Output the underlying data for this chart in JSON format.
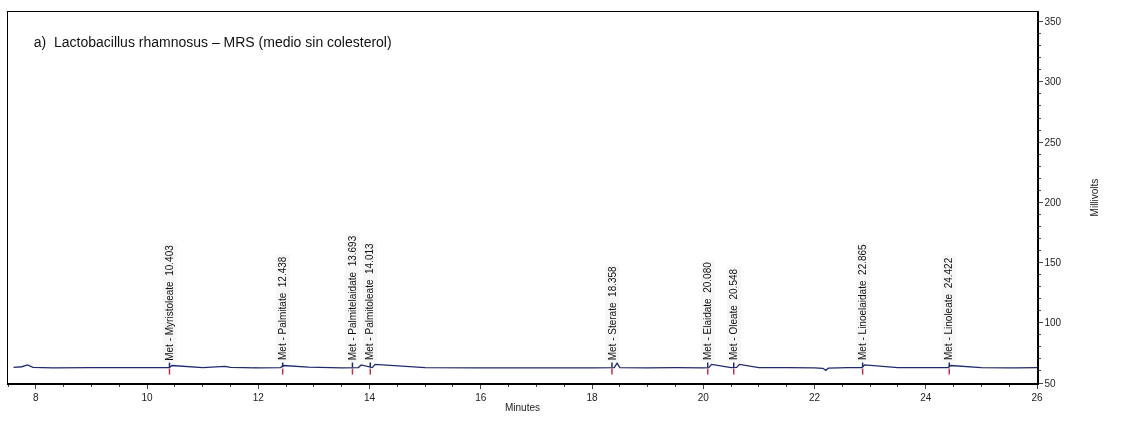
{
  "chart_data": {
    "type": "line",
    "title": "a)  Lactobacillus rhamnosus – MRS (medio sin colesterol)",
    "xlabel": "Minutes",
    "ylabel": "Millivolts",
    "x": [
      7.6,
      7.75,
      7.85,
      7.95,
      8.3,
      9,
      10,
      10.4,
      10.45,
      11,
      11.4,
      11.5,
      12,
      12.4,
      12.45,
      12.9,
      13.5,
      13.8,
      13.85,
      14.05,
      14.1,
      15,
      16,
      17,
      18,
      18.4,
      18.45,
      18.5,
      19,
      19.5,
      20,
      20.1,
      20.15,
      20.5,
      20.6,
      20.65,
      21,
      21.5,
      22,
      22.15,
      22.2,
      22.25,
      22.6,
      22.85,
      22.9,
      23.5,
      24,
      24.4,
      24.45,
      25,
      25.5,
      26
    ],
    "series": [
      {
        "color": "#1f2a6e",
        "values": [
          63,
          63.5,
          65,
          63,
          62.5,
          62.8,
          62.8,
          62.8,
          64.5,
          62.8,
          63.8,
          63,
          62.6,
          62.8,
          64.5,
          63.2,
          62.6,
          62.8,
          65,
          62.8,
          65.5,
          62.7,
          62.6,
          62.6,
          62.6,
          62.7,
          66.5,
          62.7,
          62.6,
          62.8,
          62.6,
          62.7,
          65.5,
          62.7,
          63,
          65.5,
          62.7,
          62.7,
          62.6,
          62.2,
          60.5,
          62.3,
          62.7,
          62.8,
          65,
          62.7,
          62.7,
          62.7,
          64.5,
          62.7,
          62.6,
          62.7
        ]
      }
    ],
    "xlim": [
      7.5,
      26
    ],
    "xticks": [
      8,
      10,
      12,
      14,
      16,
      18,
      20,
      22,
      24,
      26
    ],
    "ylim": [
      50,
      358
    ],
    "yticks": [
      50,
      100,
      150,
      200,
      250,
      300,
      350
    ],
    "grid": false,
    "legend": false,
    "marker": "none",
    "line_style": "solid",
    "annotations": [
      {
        "text": "Met - Myristoleate  10.403",
        "x": 10.403,
        "y": 63
      },
      {
        "text": "Met - Palmitate  12.438",
        "x": 12.438,
        "y": 63
      },
      {
        "text": "Met - Palmitelaidate  13.693",
        "x": 13.693,
        "y": 63
      },
      {
        "text": "Met - Palmitoleate  14.013",
        "x": 14.013,
        "y": 63
      },
      {
        "text": "Met - Sterate  18.358",
        "x": 18.358,
        "y": 63
      },
      {
        "text": "Met - Elaidate  20.080",
        "x": 20.08,
        "y": 63
      },
      {
        "text": "Met - Oleate  20.548",
        "x": 20.548,
        "y": 63
      },
      {
        "text": "Met - Linoelaidate  22.865",
        "x": 22.865,
        "y": 63
      },
      {
        "text": "Met - Linoleate  24.422",
        "x": 24.422,
        "y": 63
      }
    ]
  }
}
